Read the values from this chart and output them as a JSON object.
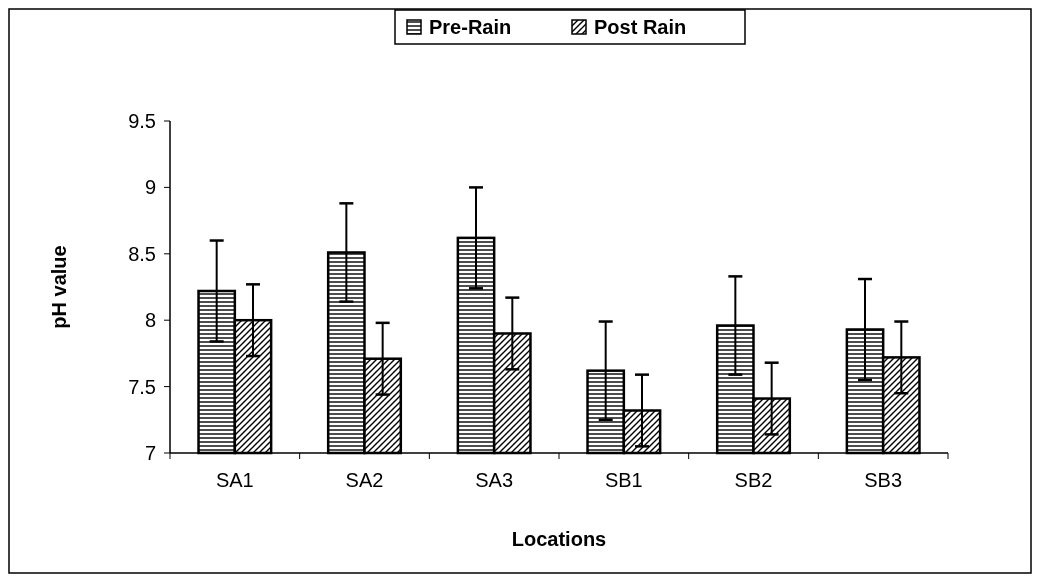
{
  "chart_data": {
    "type": "bar",
    "xlabel": "Locations",
    "ylabel": "pH value",
    "categories": [
      "SA1",
      "SA2",
      "SA3",
      "SB1",
      "SB2",
      "SB3"
    ],
    "series": [
      {
        "name": "Pre-Rain",
        "color": "#000000",
        "values": [
          8.22,
          8.51,
          8.62,
          7.62,
          7.96,
          7.93
        ],
        "errors": [
          0.38,
          0.37,
          0.38,
          0.37,
          0.37,
          0.38
        ]
      },
      {
        "name": "Post Rain",
        "color": "#000000",
        "values": [
          8.0,
          7.71,
          7.9,
          7.32,
          7.41,
          7.72
        ],
        "errors": [
          0.27,
          0.27,
          0.27,
          0.27,
          0.27,
          0.27
        ]
      }
    ],
    "ylim": [
      7,
      9.5
    ],
    "yticks": [
      7,
      7.5,
      8,
      8.5,
      9,
      9.5
    ],
    "grid": false,
    "legend": "top"
  }
}
